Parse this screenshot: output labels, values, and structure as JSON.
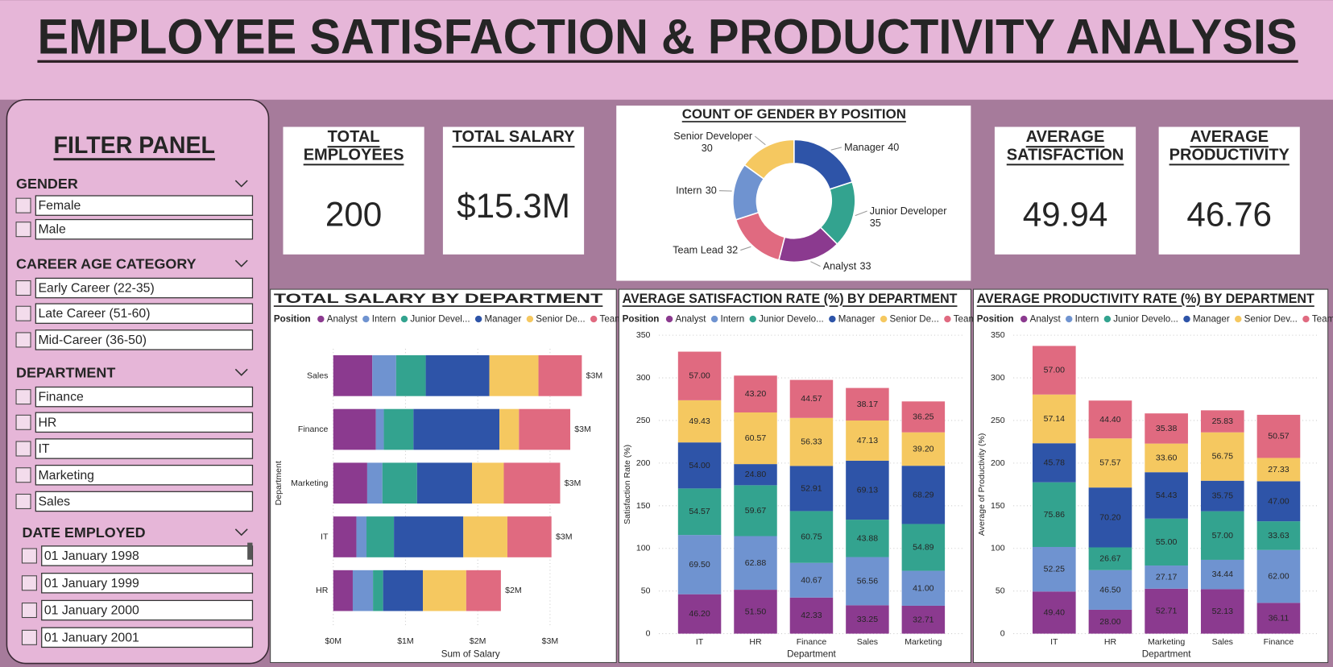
{
  "title": "EMPLOYEE SATISFACTION & PRODUCTIVITY ANALYSIS",
  "filter_panel": {
    "title": "FILTER PANEL",
    "sections": [
      {
        "title": "GENDER",
        "options": [
          "Female",
          "Male"
        ]
      },
      {
        "title": "CAREER AGE CATEGORY",
        "options": [
          "Early Career (22-35)",
          "Late Career (51-60)",
          "Mid-Career (36-50)"
        ]
      },
      {
        "title": "DEPARTMENT",
        "options": [
          "Finance",
          "HR",
          "IT",
          "Marketing",
          "Sales"
        ]
      },
      {
        "title": "DATE EMPLOYED",
        "options": [
          "01 January 1998",
          "01 January 1999",
          "01 January 2000",
          "01 January 2001"
        ]
      }
    ]
  },
  "kpis": [
    {
      "title": [
        "TOTAL",
        "EMPLOYEES"
      ],
      "value": 200
    },
    {
      "title": [
        "TOTAL SALARY"
      ],
      "value": {
        "value": 15300000,
        "label": "$15.3M"
      }
    },
    {
      "title": [
        "AVERAGE",
        "SATISFACTION"
      ],
      "value": 49.94
    },
    {
      "title": [
        "AVERAGE",
        "PRODUCTIVITY"
      ],
      "value": 46.76
    }
  ],
  "chart_data": [
    {
      "type": "donut",
      "title": "COUNT OF GENDER BY POSITION",
      "categories": [
        "Manager",
        "Junior Developer",
        "Analyst",
        "Team Lead",
        "Intern",
        "Senior Developer"
      ],
      "values": [
        40,
        35,
        33,
        32,
        30,
        30
      ],
      "colors": [
        "#2e54a8",
        "#33a38f",
        "#8b3a8f",
        "#e06a80",
        "#6f93d0",
        "#f5c860"
      ]
    },
    {
      "type": "bar",
      "orientation": "horizontal",
      "title": "TOTAL SALARY BY DEPARTMENT",
      "legend_title": "Position",
      "categories": [
        "Sales",
        "Finance",
        "Marketing",
        "IT",
        "HR"
      ],
      "series": [
        {
          "name": "Analyst",
          "color": "#8b3a8f",
          "values": [
            540000,
            590000,
            470000,
            320000,
            270000
          ]
        },
        {
          "name": "Intern",
          "color": "#6f93d0",
          "values": [
            330000,
            110000,
            210000,
            140000,
            280000
          ]
        },
        {
          "name": "Junior Devel...",
          "color": "#33a38f",
          "values": [
            410000,
            410000,
            480000,
            380000,
            140000
          ]
        },
        {
          "name": "Manager",
          "color": "#2e54a8",
          "values": [
            880000,
            1190000,
            760000,
            960000,
            550000
          ]
        },
        {
          "name": "Senior De...",
          "color": "#f5c860",
          "values": [
            680000,
            270000,
            440000,
            610000,
            600000
          ]
        },
        {
          "name": "Team Lead",
          "color": "#e06a80",
          "values": [
            600000,
            710000,
            780000,
            610000,
            480000
          ]
        }
      ],
      "total_labels": [
        "$3M",
        "$3M",
        "$3M",
        "$3M",
        "$2M"
      ],
      "xlabel": "Sum of Salary",
      "ylabel": "Department",
      "xlim": [
        0,
        3800000
      ],
      "xticks": [
        {
          "value": 0,
          "label": "$0M"
        },
        {
          "value": 1000000,
          "label": "$1M"
        },
        {
          "value": 2000000,
          "label": "$2M"
        },
        {
          "value": 3000000,
          "label": "$3M"
        }
      ],
      "grid": true
    },
    {
      "type": "bar",
      "orientation": "vertical",
      "title": "AVERAGE SATISFACTION RATE (%) BY DEPARTMENT",
      "legend_title": "Position",
      "categories": [
        "IT",
        "HR",
        "Finance",
        "Sales",
        "Marketing"
      ],
      "series": [
        {
          "name": "Analyst",
          "color": "#8b3a8f",
          "values": [
            46.2,
            51.5,
            42.33,
            33.25,
            32.71
          ],
          "value_labels": [
            "46.20",
            "51.50",
            "42.33",
            "33.25",
            "32.71"
          ]
        },
        {
          "name": "Intern",
          "color": "#6f93d0",
          "values": [
            69.5,
            62.88,
            40.67,
            56.56,
            41
          ],
          "value_labels": [
            "69.50",
            "62.88",
            "40.67",
            "56.56",
            "41.00"
          ]
        },
        {
          "name": "Junior Develo...",
          "color": "#33a38f",
          "values": [
            54.57,
            59.67,
            60.75,
            43.88,
            54.89
          ],
          "value_labels": [
            "54.57",
            "59.67",
            "60.75",
            "43.88",
            "54.89"
          ]
        },
        {
          "name": "Manager",
          "color": "#2e54a8",
          "values": [
            54,
            24.8,
            52.91,
            69.13,
            68.29
          ],
          "value_labels": [
            "54.00",
            "24.80",
            "52.91",
            "69.13",
            "68.29"
          ]
        },
        {
          "name": "Senior De...",
          "color": "#f5c860",
          "values": [
            49.43,
            60.57,
            56.33,
            47.13,
            39.2
          ],
          "value_labels": [
            "49.43",
            "60.57",
            "56.33",
            "47.13",
            "39.20"
          ]
        },
        {
          "name": "Team Lead",
          "color": "#e06a80",
          "values": [
            57,
            43.2,
            44.57,
            38.17,
            36.25
          ],
          "value_labels": [
            "57.00",
            "43.20",
            "44.57",
            "38.17",
            "36.25"
          ]
        }
      ],
      "xlabel": "Department",
      "ylabel": "Satisfaction Rate (%)",
      "ylim": [
        0,
        350
      ],
      "yticks": [
        0,
        50,
        100,
        150,
        200,
        250,
        300,
        350
      ],
      "grid": true
    },
    {
      "type": "bar",
      "orientation": "vertical",
      "title": "AVERAGE PRODUCTIVITY RATE (%) BY DEPARTMENT",
      "legend_title": "Position",
      "categories": [
        "IT",
        "HR",
        "Marketing",
        "Sales",
        "Finance"
      ],
      "series": [
        {
          "name": "Analyst",
          "color": "#8b3a8f",
          "values": [
            49.4,
            28,
            52.71,
            52.13,
            36.11
          ],
          "value_labels": [
            "49.40",
            "28.00",
            "52.71",
            "52.13",
            "36.11"
          ]
        },
        {
          "name": "Intern",
          "color": "#6f93d0",
          "values": [
            52.25,
            46.5,
            27.17,
            34.44,
            62
          ],
          "value_labels": [
            "52.25",
            "46.50",
            "27.17",
            "34.44",
            "62.00"
          ]
        },
        {
          "name": "Junior Develo...",
          "color": "#33a38f",
          "values": [
            75.86,
            26.67,
            55,
            57,
            33.63
          ],
          "value_labels": [
            "75.86",
            "26.67",
            "55.00",
            "57.00",
            "33.63"
          ]
        },
        {
          "name": "Manager",
          "color": "#2e54a8",
          "values": [
            45.78,
            70.2,
            54.43,
            35.75,
            47
          ],
          "value_labels": [
            "45.78",
            "70.20",
            "54.43",
            "35.75",
            "47.00"
          ]
        },
        {
          "name": "Senior Dev...",
          "color": "#f5c860",
          "values": [
            57.14,
            57.57,
            33.6,
            56.75,
            27.33
          ],
          "value_labels": [
            "57.14",
            "57.57",
            "33.60",
            "56.75",
            "27.33"
          ]
        },
        {
          "name": "Team Lead",
          "color": "#e06a80",
          "values": [
            57,
            44.4,
            35.38,
            25.83,
            50.57
          ],
          "value_labels": [
            "57.00",
            "44.40",
            "35.38",
            "25.83",
            "50.57"
          ]
        }
      ],
      "xlabel": "Department",
      "ylabel": "Average of Productivity (%)",
      "ylim": [
        0,
        350
      ],
      "yticks": [
        0,
        50,
        100,
        150,
        200,
        250,
        300,
        350
      ],
      "grid": true
    }
  ]
}
